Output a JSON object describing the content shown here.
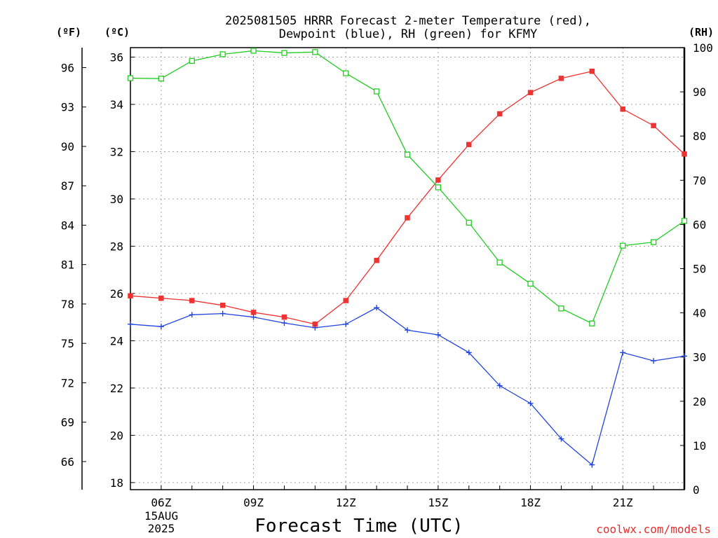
{
  "title_line1": "2025081505 HRRR Forecast 2-meter Temperature (red),",
  "title_line2": "Dewpoint (blue), RH (green) for KFMY",
  "unit_f": "(ºF)",
  "unit_c": "(ºC)",
  "unit_rh": "(RH)",
  "xlabel": "Forecast Time (UTC)",
  "credit": "coolwx.com/models",
  "date_label_day": "15AUG",
  "date_label_year": "2025",
  "colors": {
    "temperature": "#ee3333",
    "dewpoint": "#2244dd",
    "rh": "#22cc22",
    "grid": "#a0a0a0",
    "credit": "#e03030"
  },
  "chart_data": {
    "type": "line",
    "x_unit": "hour UTC, 15 Aug 2025",
    "x": [
      5,
      6,
      7,
      8,
      9,
      10,
      11,
      12,
      13,
      14,
      15,
      16,
      17,
      18,
      19,
      20,
      21,
      22,
      23
    ],
    "x_ticks": [
      {
        "hour": 6,
        "label": "06Z"
      },
      {
        "hour": 9,
        "label": "09Z"
      },
      {
        "hour": 12,
        "label": "12Z"
      },
      {
        "hour": 15,
        "label": "15Z"
      },
      {
        "hour": 18,
        "label": "18Z"
      },
      {
        "hour": 21,
        "label": "21Z"
      }
    ],
    "xlim": [
      5,
      23
    ],
    "left_axis_c": {
      "ylim": [
        17.7,
        36.4
      ],
      "ticks": [
        "18",
        "20",
        "22",
        "24",
        "26",
        "28",
        "30",
        "32",
        "34",
        "36"
      ]
    },
    "left_axis_f": {
      "ticks": [
        "66",
        "69",
        "72",
        "75",
        "78",
        "81",
        "84",
        "87",
        "90",
        "93",
        "96"
      ]
    },
    "right_axis_rh": {
      "ylim": [
        0,
        100
      ],
      "ticks": [
        "0",
        "10",
        "20",
        "30",
        "40",
        "50",
        "60",
        "70",
        "80",
        "90",
        "100"
      ]
    },
    "grid": true,
    "series": [
      {
        "name": "Temperature",
        "axis": "c",
        "marker": "filled-square",
        "values": [
          25.9,
          25.8,
          25.7,
          25.5,
          25.2,
          25.0,
          24.7,
          25.7,
          27.4,
          29.2,
          30.8,
          32.3,
          33.6,
          34.5,
          35.1,
          35.4,
          33.8,
          33.1,
          31.9
        ]
      },
      {
        "name": "Dewpoint",
        "axis": "c",
        "marker": "plus",
        "values": [
          24.7,
          24.6,
          25.1,
          25.15,
          25.0,
          24.75,
          24.55,
          24.7,
          25.4,
          24.45,
          24.25,
          23.5,
          22.1,
          21.35,
          19.85,
          18.75,
          23.5,
          23.15,
          23.35
        ]
      },
      {
        "name": "RH",
        "axis": "rh",
        "marker": "open-square",
        "values": [
          93.1,
          93.0,
          97.0,
          98.5,
          99.3,
          98.8,
          99.0,
          94.2,
          90.1,
          75.8,
          68.4,
          60.4,
          51.4,
          46.6,
          41.0,
          37.6,
          55.2,
          56.0,
          60.8
        ]
      }
    ]
  }
}
